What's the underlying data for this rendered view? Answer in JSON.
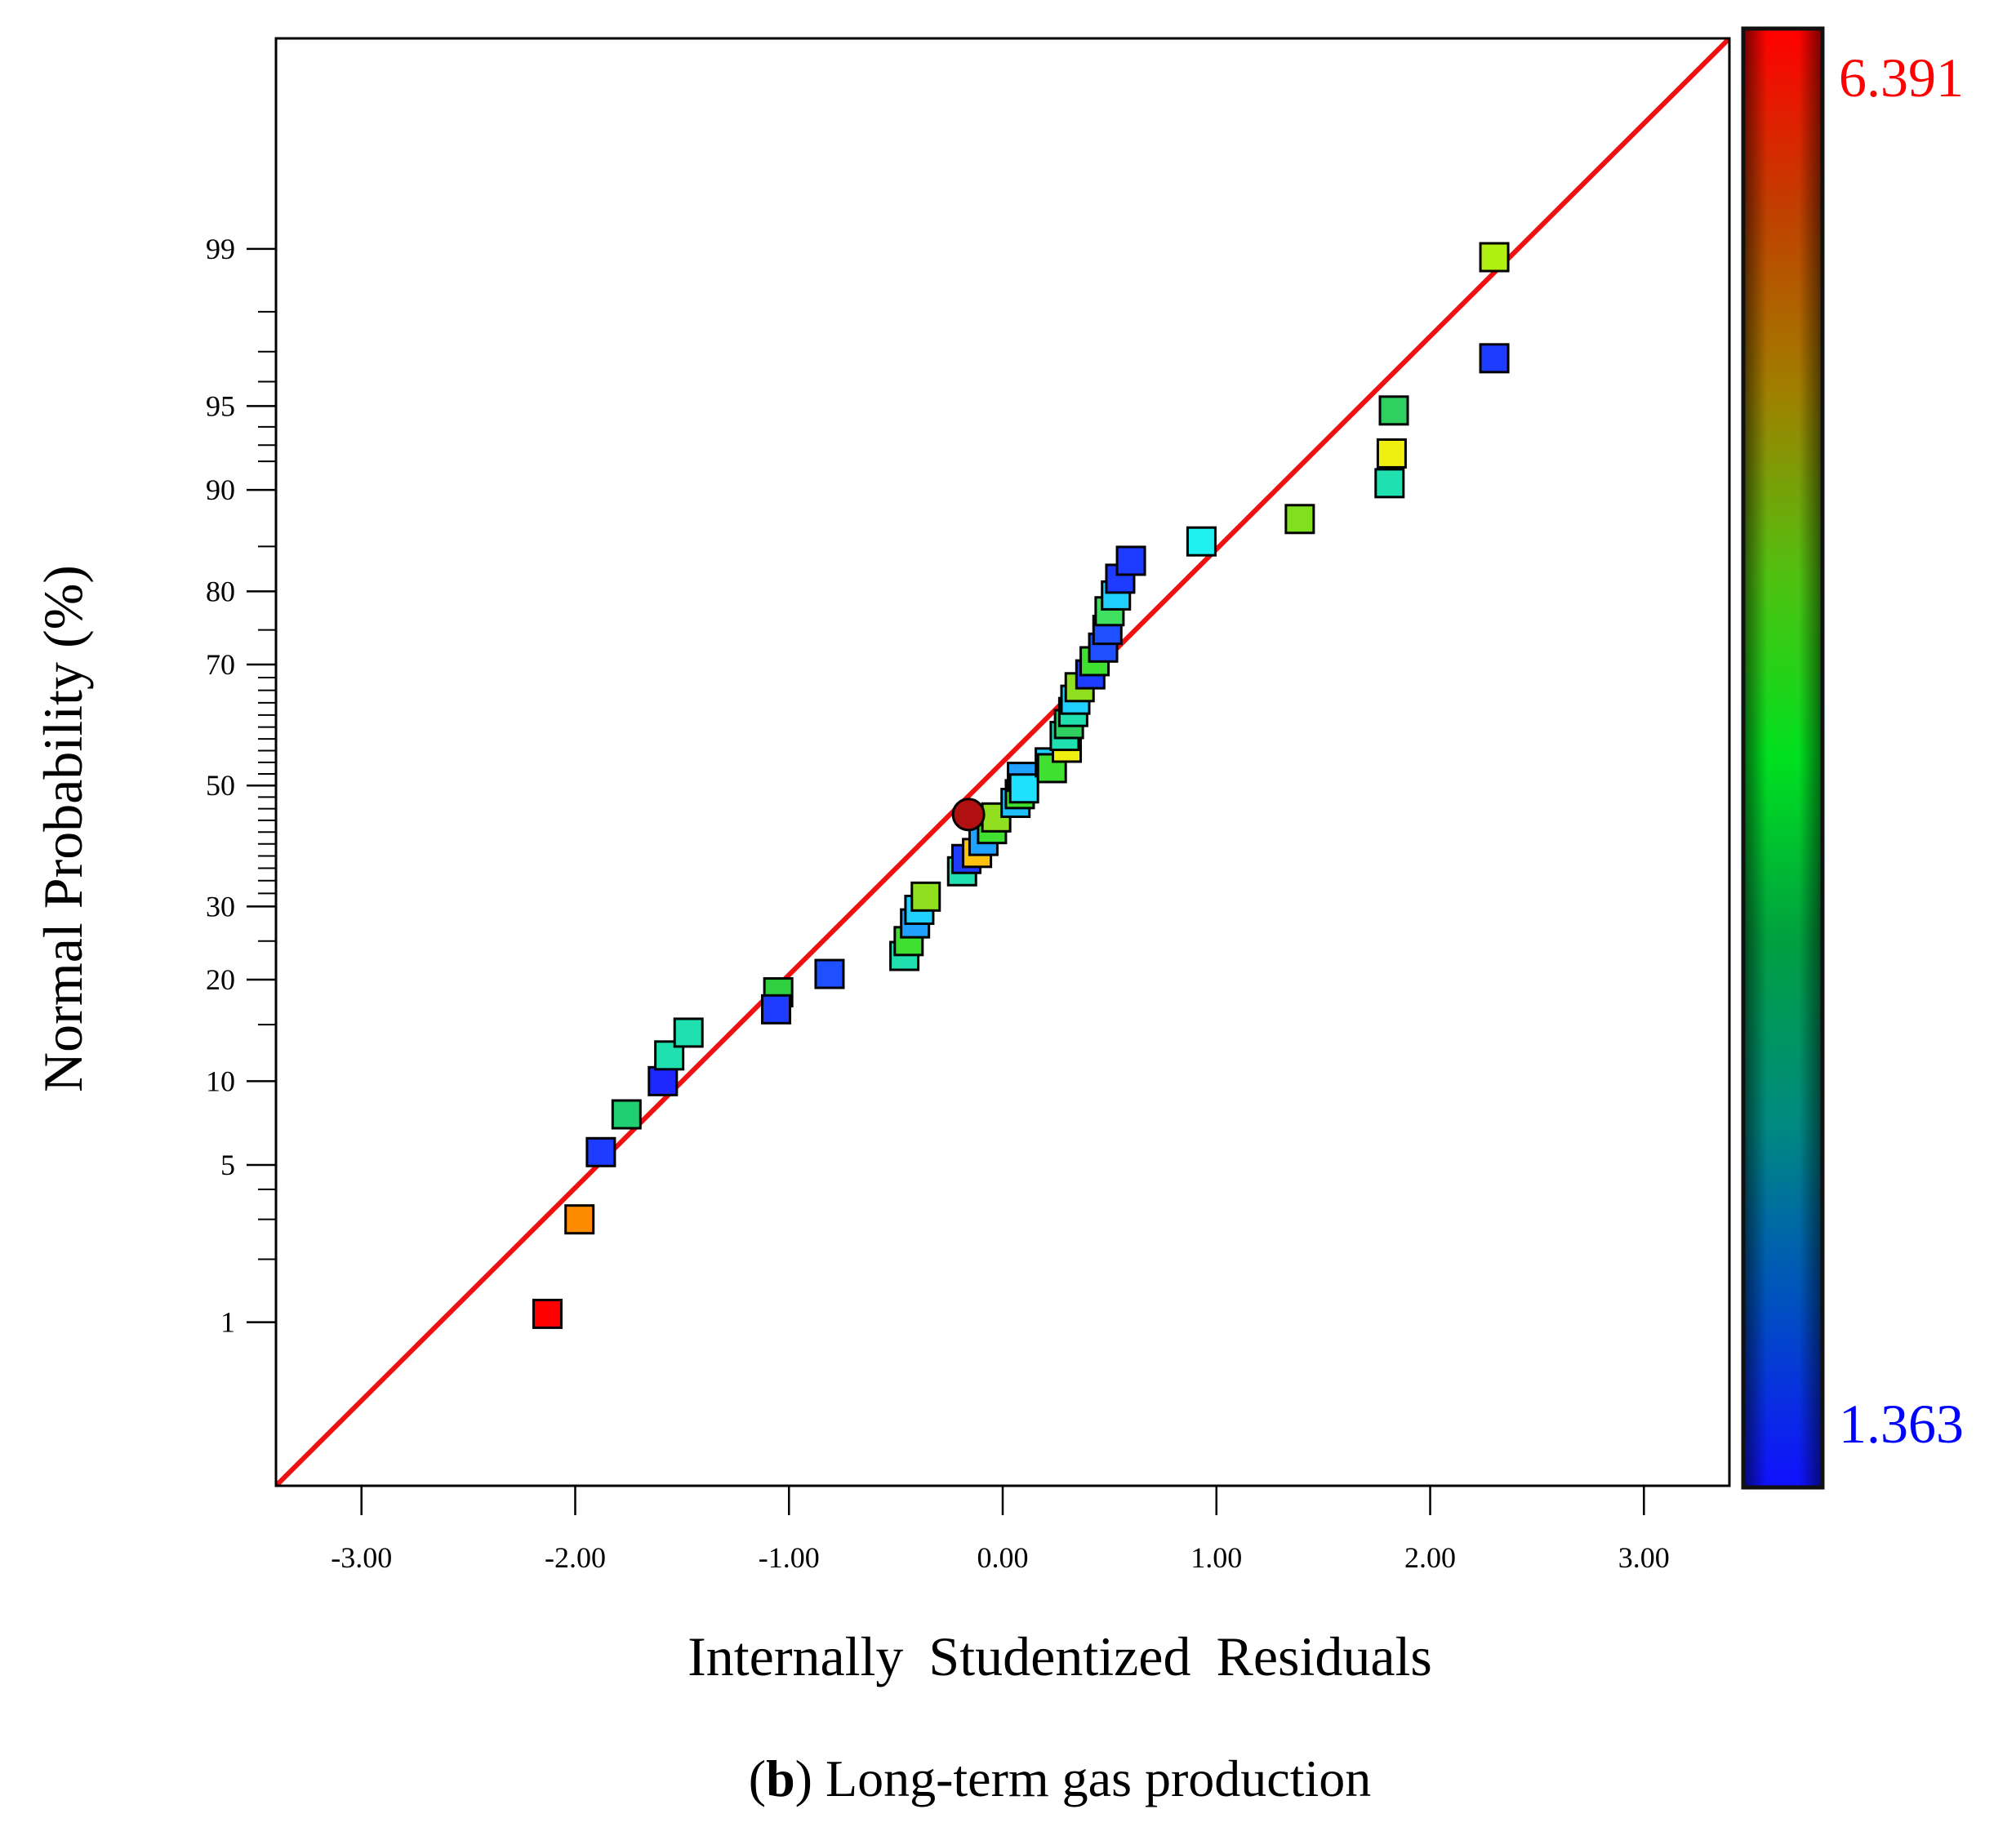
{
  "chart_data": {
    "type": "scatter",
    "title": "",
    "caption": {
      "prefix": "(",
      "letter": "b",
      "suffix": ") Long-term gas production"
    },
    "xlabel": "Internally Studentized Residuals",
    "ylabel": "Normal Probability (%)",
    "xlim": [
      -3.4,
      3.4
    ],
    "ylim_probability_percent": [
      0.12,
      99.94
    ],
    "y_scale": "normal-probability",
    "x_ticks": [
      {
        "value": -3,
        "label": "-3.00"
      },
      {
        "value": -2,
        "label": "-2.00"
      },
      {
        "value": -1,
        "label": "-1.00"
      },
      {
        "value": 0,
        "label": "0.00"
      },
      {
        "value": 1,
        "label": "1.00"
      },
      {
        "value": 2,
        "label": "2.00"
      },
      {
        "value": 3,
        "label": "3.00"
      }
    ],
    "y_ticks": [
      {
        "value": 1,
        "label": "1"
      },
      {
        "value": 5,
        "label": "5"
      },
      {
        "value": 10,
        "label": "10"
      },
      {
        "value": 20,
        "label": "20"
      },
      {
        "value": 30,
        "label": "30"
      },
      {
        "value": 50,
        "label": "50"
      },
      {
        "value": 70,
        "label": "70"
      },
      {
        "value": 80,
        "label": "80"
      },
      {
        "value": 90,
        "label": "90"
      },
      {
        "value": 95,
        "label": "95"
      },
      {
        "value": 99,
        "label": "99"
      }
    ],
    "y_minor_ticks": [
      2,
      3,
      4,
      15,
      25,
      32,
      34,
      36,
      38,
      40,
      42,
      44,
      46,
      48,
      52,
      54,
      56,
      58,
      60,
      62,
      64,
      66,
      68,
      75,
      85,
      92,
      93,
      94,
      96,
      97,
      98
    ],
    "reference_line": {
      "color": "#ee1111",
      "points": [
        {
          "x": -3.4,
          "p": 0.12
        },
        {
          "x": 3.4,
          "p": 99.94
        }
      ]
    },
    "colorbar": {
      "max_label": "6.391",
      "min_label": "1.363",
      "max_value": 6.391,
      "min_value": 1.363,
      "max_label_color": "#ff0000",
      "min_label_color": "#0000ff",
      "stops": [
        "#1010ff",
        "#0050c0",
        "#008a80",
        "#00a040",
        "#00e020",
        "#50c010",
        "#a08000",
        "#c04000",
        "#ff0000"
      ]
    },
    "series": [
      {
        "name": "Residuals",
        "points": [
          {
            "x": -2.13,
            "p": 1.1,
            "color": "#ff0000",
            "shape": "square"
          },
          {
            "x": -1.98,
            "p": 3.0,
            "color": "#ff8c00",
            "shape": "square"
          },
          {
            "x": -1.88,
            "p": 5.6,
            "color": "#1e3cff",
            "shape": "square"
          },
          {
            "x": -1.76,
            "p": 7.7,
            "color": "#20d070",
            "shape": "square"
          },
          {
            "x": -1.59,
            "p": 10.0,
            "color": "#1e28ff",
            "shape": "square"
          },
          {
            "x": -1.56,
            "p": 12.1,
            "color": "#20e0b0",
            "shape": "square"
          },
          {
            "x": -1.47,
            "p": 14.2,
            "color": "#20e0b0",
            "shape": "square"
          },
          {
            "x": -1.05,
            "p": 18.5,
            "color": "#30d040",
            "shape": "square"
          },
          {
            "x": -1.06,
            "p": 16.6,
            "color": "#1e3cff",
            "shape": "square"
          },
          {
            "x": -0.81,
            "p": 20.7,
            "color": "#1e50ff",
            "shape": "square"
          },
          {
            "x": -0.46,
            "p": 23.0,
            "color": "#20e0b0",
            "shape": "square"
          },
          {
            "x": -0.44,
            "p": 25.0,
            "color": "#40e030",
            "shape": "square"
          },
          {
            "x": -0.41,
            "p": 27.5,
            "color": "#20a0ff",
            "shape": "square"
          },
          {
            "x": -0.39,
            "p": 29.5,
            "color": "#20d0ff",
            "shape": "square"
          },
          {
            "x": -0.36,
            "p": 31.5,
            "color": "#90e020",
            "shape": "square"
          },
          {
            "x": -0.19,
            "p": 35.5,
            "color": "#20e0b0",
            "shape": "square"
          },
          {
            "x": -0.17,
            "p": 37.5,
            "color": "#1e3cff",
            "shape": "square"
          },
          {
            "x": -0.12,
            "p": 38.5,
            "color": "#ffc010",
            "shape": "square"
          },
          {
            "x": -0.09,
            "p": 40.5,
            "color": "#20a0ff",
            "shape": "square"
          },
          {
            "x": -0.05,
            "p": 42.5,
            "color": "#40e030",
            "shape": "square"
          },
          {
            "x": -0.03,
            "p": 44.5,
            "color": "#90e020",
            "shape": "square"
          },
          {
            "x": 0.06,
            "p": 47.0,
            "color": "#20c0ff",
            "shape": "square"
          },
          {
            "x": 0.08,
            "p": 48.5,
            "color": "#40e030",
            "shape": "square"
          },
          {
            "x": 0.09,
            "p": 51.5,
            "color": "#20a0ff",
            "shape": "square"
          },
          {
            "x": 0.1,
            "p": 49.5,
            "color": "#20e0ff",
            "shape": "square"
          },
          {
            "x": 0.22,
            "p": 54.0,
            "color": "#20d0ff",
            "shape": "square"
          },
          {
            "x": 0.23,
            "p": 53.0,
            "color": "#40e030",
            "shape": "square"
          },
          {
            "x": 0.3,
            "p": 56.5,
            "color": "#f0f010",
            "shape": "square"
          },
          {
            "x": 0.29,
            "p": 58.5,
            "color": "#20e0b0",
            "shape": "square"
          },
          {
            "x": 0.31,
            "p": 60.5,
            "color": "#30d060",
            "shape": "square"
          },
          {
            "x": 0.33,
            "p": 62.5,
            "color": "#20e0b0",
            "shape": "square"
          },
          {
            "x": 0.34,
            "p": 64.5,
            "color": "#20d0ff",
            "shape": "square"
          },
          {
            "x": 0.36,
            "p": 66.5,
            "color": "#90e020",
            "shape": "square"
          },
          {
            "x": 0.41,
            "p": 68.5,
            "color": "#1e3cff",
            "shape": "square"
          },
          {
            "x": 0.43,
            "p": 70.5,
            "color": "#40e030",
            "shape": "square"
          },
          {
            "x": 0.47,
            "p": 72.5,
            "color": "#1e50ff",
            "shape": "square"
          },
          {
            "x": 0.49,
            "p": 75.0,
            "color": "#1e50ff",
            "shape": "square"
          },
          {
            "x": 0.5,
            "p": 77.5,
            "color": "#40e060",
            "shape": "square"
          },
          {
            "x": 0.53,
            "p": 79.5,
            "color": "#20d0ff",
            "shape": "square"
          },
          {
            "x": 0.55,
            "p": 81.5,
            "color": "#1e3cff",
            "shape": "square"
          },
          {
            "x": 0.6,
            "p": 83.5,
            "color": "#1e3cff",
            "shape": "square"
          },
          {
            "x": 0.93,
            "p": 85.5,
            "color": "#20f0f0",
            "shape": "square"
          },
          {
            "x": 1.39,
            "p": 87.6,
            "color": "#80e020",
            "shape": "square"
          },
          {
            "x": 1.81,
            "p": 90.5,
            "color": "#20e0b0",
            "shape": "square"
          },
          {
            "x": 1.82,
            "p": 92.5,
            "color": "#f0f010",
            "shape": "square"
          },
          {
            "x": 1.83,
            "p": 94.8,
            "color": "#30d060",
            "shape": "square"
          },
          {
            "x": 2.3,
            "p": 96.8,
            "color": "#1e3cff",
            "shape": "square"
          },
          {
            "x": 2.3,
            "p": 98.9,
            "color": "#b0f010",
            "shape": "square"
          },
          {
            "x": -0.16,
            "p": 45.0,
            "color": "#b01010",
            "shape": "circle"
          }
        ]
      }
    ]
  }
}
